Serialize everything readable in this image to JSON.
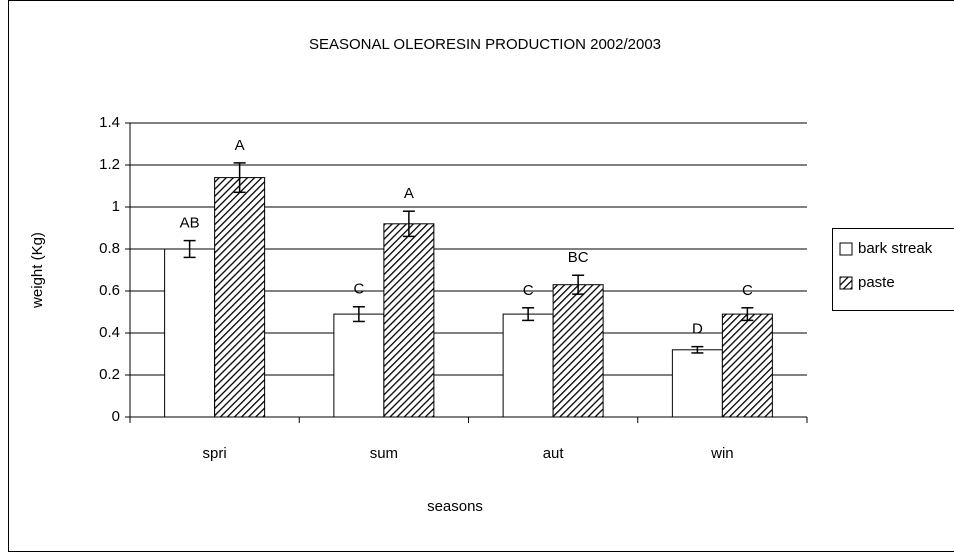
{
  "chart_data": {
    "type": "bar",
    "title": "SEASONAL OLEORESIN PRODUCTION 2002/2003",
    "xlabel": "seasons",
    "ylabel": "weight (Kg)",
    "categories": [
      "spri",
      "sum",
      "aut",
      "win"
    ],
    "series": [
      {
        "name": "bark streak",
        "color": "#ffffff",
        "hatch": false,
        "values": [
          0.8,
          0.49,
          0.49,
          0.32
        ],
        "errors": [
          0.04,
          0.035,
          0.03,
          0.015
        ],
        "labels": [
          "AB",
          "C",
          "C",
          "D"
        ]
      },
      {
        "name": "paste",
        "color": "#000000",
        "hatch": true,
        "values": [
          1.14,
          0.92,
          0.63,
          0.49
        ],
        "errors": [
          0.07,
          0.06,
          0.045,
          0.03
        ],
        "labels": [
          "A",
          "A",
          "BC",
          "C"
        ]
      }
    ],
    "ylim": [
      0,
      1.4
    ],
    "yticks": [
      0,
      0.2,
      0.4,
      0.6,
      0.8,
      1,
      1.2,
      1.4
    ],
    "grid": true,
    "legend": "right"
  }
}
